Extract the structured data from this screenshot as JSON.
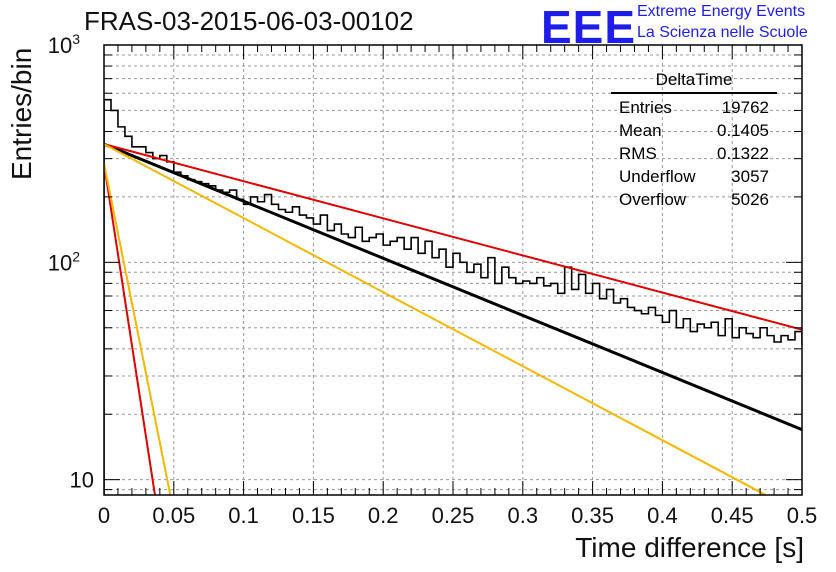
{
  "title": "FRAS-03-2015-06-03-00102",
  "logo": {
    "mark": "EEE",
    "line1": "Extreme Energy Events",
    "line2": "La Scienza nelle Scuole",
    "color": "#1e1ee8"
  },
  "stats_box": {
    "title": "DeltaTime",
    "rows": [
      {
        "label": "Entries",
        "value": "19762"
      },
      {
        "label": "Mean",
        "value": "0.1405"
      },
      {
        "label": "RMS",
        "value": "0.1322"
      },
      {
        "label": "Underflow",
        "value": "3057"
      },
      {
        "label": "Overflow",
        "value": "5026"
      }
    ]
  },
  "chart_data": {
    "type": "line",
    "xlabel": "Time difference [s]",
    "ylabel": "Entries/bin",
    "xlim": [
      0,
      0.5
    ],
    "ylim": [
      8.5,
      1000
    ],
    "yscale": "log",
    "grid": true,
    "x_ticks": [
      "0",
      "0.05",
      "0.1",
      "0.15",
      "0.2",
      "0.25",
      "0.3",
      "0.35",
      "0.4",
      "0.45",
      "0.5"
    ],
    "y_ticks": [
      {
        "value": 10,
        "label": "10"
      },
      {
        "value": 100,
        "label": "10",
        "sup": "2"
      },
      {
        "value": 1000,
        "label": "10",
        "sup": "3"
      }
    ],
    "histogram": {
      "bin_width": 0.005,
      "color": "#000000",
      "values": [
        560,
        500,
        420,
        380,
        340,
        340,
        320,
        300,
        310,
        290,
        260,
        250,
        240,
        235,
        230,
        225,
        215,
        210,
        215,
        195,
        185,
        200,
        190,
        205,
        185,
        175,
        170,
        180,
        165,
        160,
        150,
        165,
        140,
        150,
        135,
        130,
        145,
        125,
        130,
        135,
        120,
        125,
        130,
        115,
        130,
        110,
        125,
        105,
        115,
        95,
        110,
        100,
        90,
        98,
        85,
        105,
        80,
        95,
        85,
        80,
        82,
        80,
        85,
        78,
        80,
        72,
        95,
        75,
        88,
        72,
        80,
        68,
        75,
        65,
        68,
        62,
        60,
        58,
        62,
        57,
        53,
        60,
        50,
        55,
        48,
        52,
        50,
        53,
        46,
        55,
        45,
        50,
        47,
        45,
        50,
        46,
        43,
        46,
        44,
        48,
        42,
        45,
        43,
        47,
        44,
        42,
        45,
        40,
        45,
        35,
        43,
        38,
        42,
        42,
        46,
        40,
        36,
        38,
        42,
        45,
        37,
        42,
        38,
        40,
        44,
        43,
        45,
        45,
        34,
        40,
        41,
        42,
        38,
        35,
        42,
        44,
        36,
        42,
        38,
        40,
        33,
        38,
        40,
        41,
        36,
        35,
        39,
        37,
        36,
        40,
        35,
        34,
        40,
        41,
        38,
        37,
        36,
        35,
        37,
        33,
        36,
        40,
        38,
        35,
        42,
        40,
        38,
        39,
        45,
        40,
        43,
        40,
        42,
        40,
        37,
        40,
        43,
        42,
        43,
        36,
        35,
        40,
        32,
        37,
        35,
        34,
        40,
        36,
        34,
        36,
        37,
        38,
        35,
        35,
        33,
        36,
        34,
        32,
        36,
        35
      ]
    },
    "series": [
      {
        "color": "#000000",
        "x": [
          0,
          0.5
        ],
        "y": [
          350,
          17
        ],
        "width": 3
      },
      {
        "color": "#dd0000",
        "x": [
          0,
          0.5
        ],
        "y": [
          350,
          49
        ],
        "width": 2
      },
      {
        "color": "#f5b800",
        "x": [
          0,
          0.474
        ],
        "y": [
          350,
          8.5
        ],
        "width": 2
      },
      {
        "color": "#dd0000",
        "x": [
          0,
          0.0365
        ],
        "y": [
          285,
          8.5
        ],
        "width": 2
      },
      {
        "color": "#f5b800",
        "x": [
          0,
          0.0475
        ],
        "y": [
          285,
          8.5
        ],
        "width": 2
      }
    ]
  }
}
